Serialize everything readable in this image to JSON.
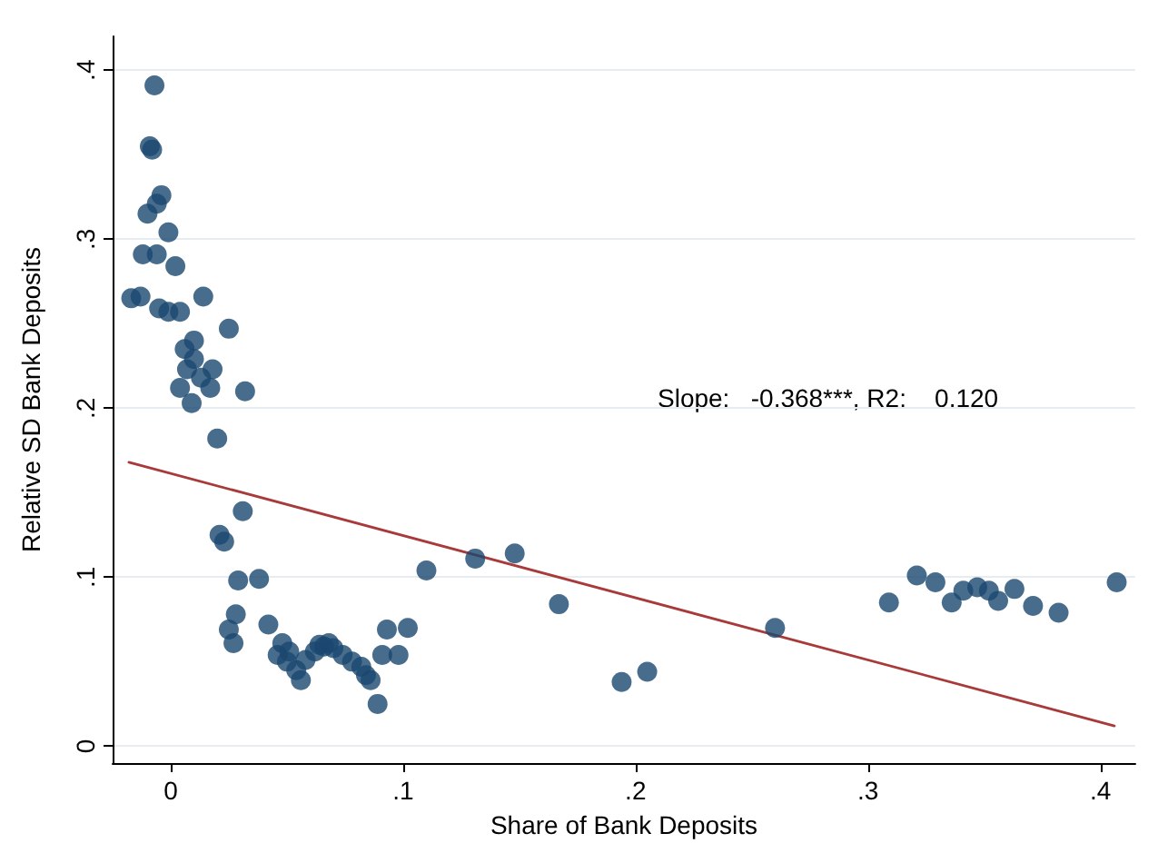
{
  "chart_data": {
    "type": "scatter",
    "xlabel": "Share of Bank Deposits",
    "ylabel": "Relative SD Bank Deposits",
    "annotations": [
      "Slope:   -0.368***, R2:    0.120"
    ],
    "xlim": [
      -0.025,
      0.415
    ],
    "ylim": [
      -0.01,
      0.42
    ],
    "xticks": [
      {
        "value": 0,
        "label": "0"
      },
      {
        "value": 0.1,
        "label": ".1"
      },
      {
        "value": 0.2,
        "label": ".2"
      },
      {
        "value": 0.3,
        "label": ".3"
      },
      {
        "value": 0.4,
        "label": ".4"
      }
    ],
    "yticks": [
      {
        "value": 0,
        "label": "0"
      },
      {
        "value": 0.1,
        "label": ".1"
      },
      {
        "value": 0.2,
        "label": ".2"
      },
      {
        "value": 0.3,
        "label": ".3"
      },
      {
        "value": 0.4,
        "label": ".4"
      }
    ],
    "grid": "y",
    "marker": "circle",
    "series": [
      {
        "color": "#1a476f",
        "x": [
          -0.007,
          -0.009,
          -0.008,
          -0.004,
          -0.006,
          -0.01,
          -0.001,
          -0.012,
          -0.006,
          0.002,
          -0.005,
          -0.001,
          0.004,
          -0.017,
          -0.013,
          0.014,
          0.025,
          0.006,
          0.01,
          0.004,
          0.009,
          0.007,
          0.01,
          0.013,
          0.018,
          0.017,
          0.032,
          0.02,
          0.021,
          0.023,
          0.025,
          0.027,
          0.028,
          0.029,
          0.031,
          0.038,
          0.042,
          0.046,
          0.048,
          0.05,
          0.051,
          0.054,
          0.056,
          0.058,
          0.062,
          0.064,
          0.066,
          0.068,
          0.07,
          0.074,
          0.078,
          0.082,
          0.084,
          0.086,
          0.089,
          0.091,
          0.093,
          0.098,
          0.102,
          0.11,
          0.131,
          0.148,
          0.167,
          0.194,
          0.205,
          0.26,
          0.309,
          0.321,
          0.329,
          0.336,
          0.341,
          0.347,
          0.352,
          0.356,
          0.363,
          0.371,
          0.382,
          0.407
        ],
        "values": [
          0.391,
          0.355,
          0.353,
          0.326,
          0.321,
          0.315,
          0.304,
          0.291,
          0.291,
          0.284,
          0.259,
          0.257,
          0.257,
          0.265,
          0.266,
          0.266,
          0.247,
          0.235,
          0.24,
          0.212,
          0.203,
          0.223,
          0.229,
          0.218,
          0.223,
          0.212,
          0.21,
          0.182,
          0.125,
          0.121,
          0.069,
          0.061,
          0.078,
          0.098,
          0.139,
          0.099,
          0.072,
          0.054,
          0.061,
          0.05,
          0.056,
          0.045,
          0.039,
          0.051,
          0.056,
          0.06,
          0.059,
          0.061,
          0.058,
          0.054,
          0.05,
          0.047,
          0.042,
          0.039,
          0.025,
          0.054,
          0.069,
          0.054,
          0.07,
          0.104,
          0.111,
          0.114,
          0.084,
          0.038,
          0.044,
          0.07,
          0.085,
          0.101,
          0.097,
          0.085,
          0.092,
          0.094,
          0.092,
          0.086,
          0.093,
          0.083,
          0.079,
          0.097
        ]
      },
      {
        "type": "line",
        "marker": "none",
        "color": "#a83a3a",
        "x": [
          -0.018,
          0.406
        ],
        "values": [
          0.168,
          0.012
        ]
      }
    ]
  }
}
